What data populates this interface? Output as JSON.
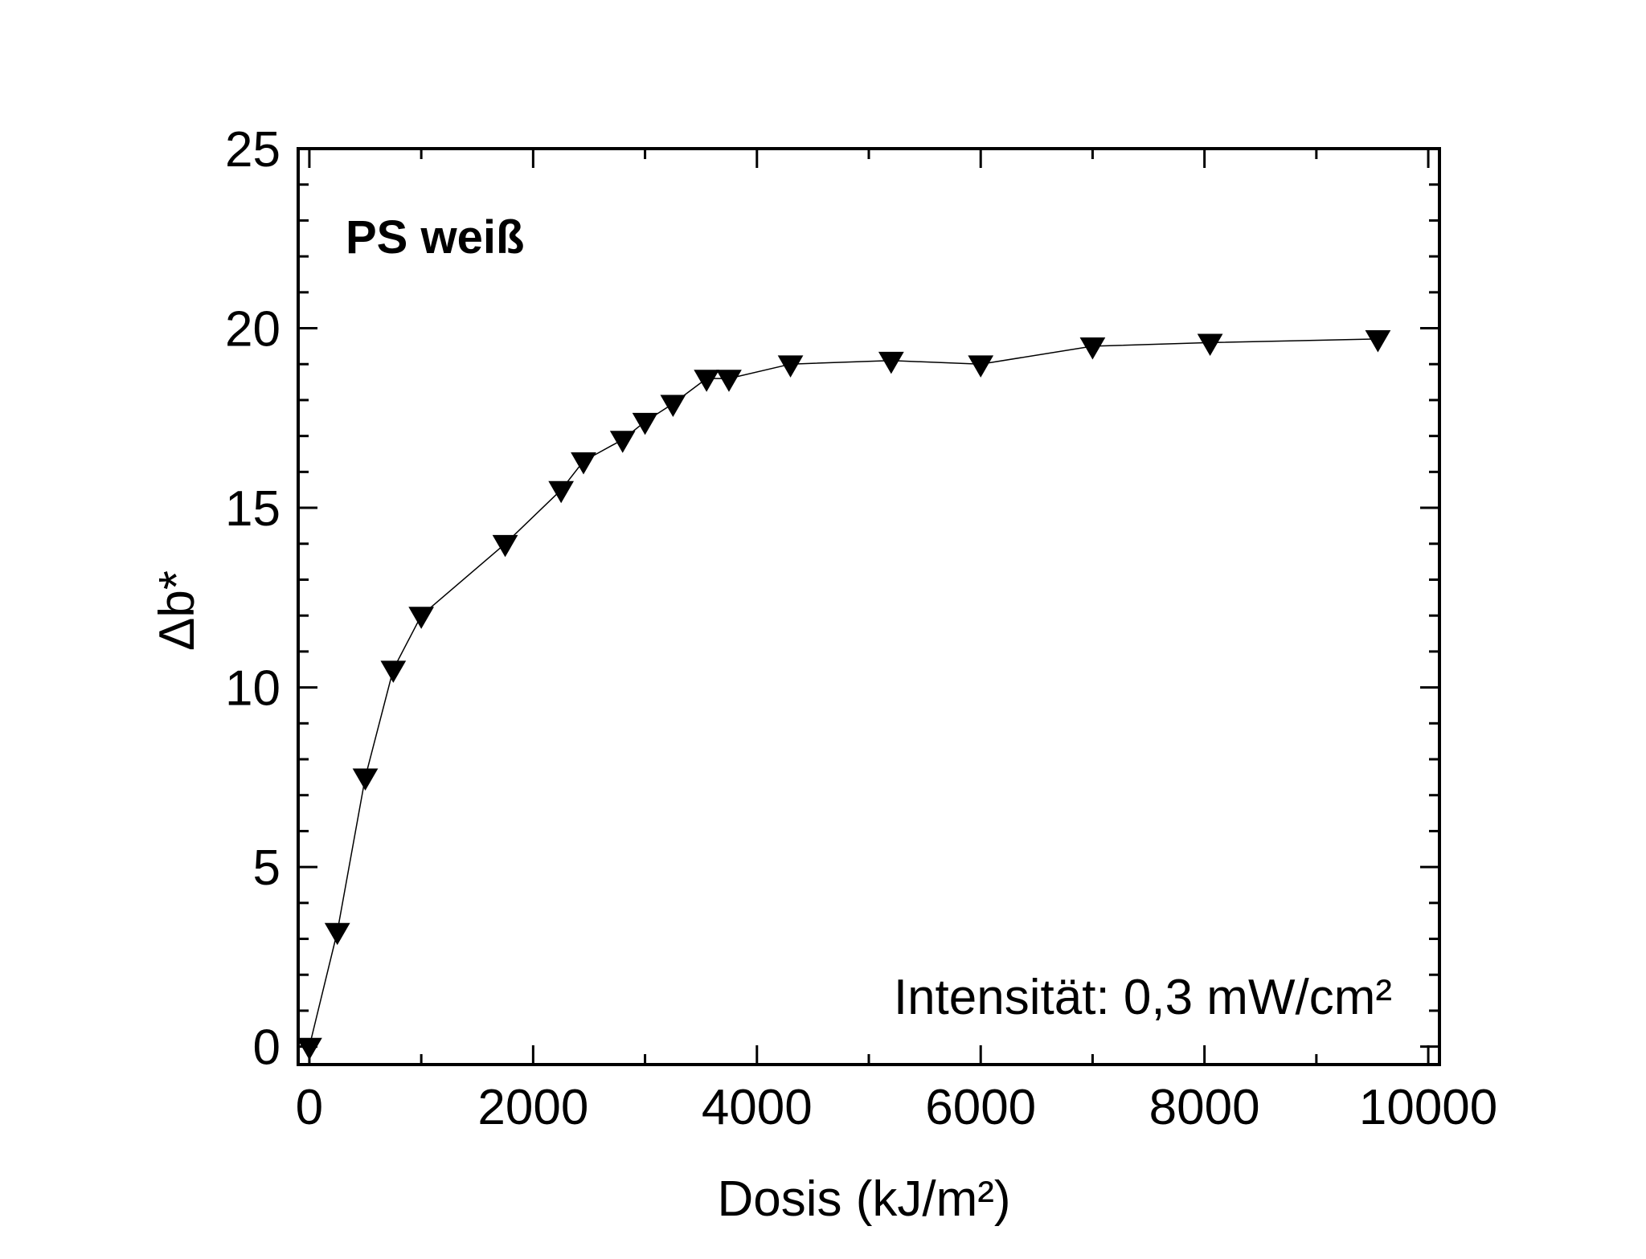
{
  "chart_data": {
    "type": "scatter",
    "title": "PS weiß",
    "annotation": "Intensität: 0,3 mW/cm²",
    "xlabel": "Dosis (kJ/m²)",
    "ylabel": "Δb*",
    "xlim": [
      -100,
      10100
    ],
    "ylim": [
      -0.5,
      25
    ],
    "xticks": [
      0,
      2000,
      4000,
      6000,
      8000,
      10000
    ],
    "xtick_labels": [
      "0",
      "2000",
      "4000",
      "6000",
      "8000",
      "10000"
    ],
    "yticks": [
      0,
      5,
      10,
      15,
      20,
      25
    ],
    "ytick_labels": [
      "0",
      "5",
      "10",
      "15",
      "20",
      "25"
    ],
    "grid": false,
    "marker": "triangle-down",
    "line": true,
    "color": "#000000",
    "series": [
      {
        "x": [
          0,
          250,
          500,
          750,
          1000,
          1750,
          2250,
          2450,
          2800,
          3000,
          3250,
          3550,
          3750,
          4300,
          5200,
          6000,
          7000,
          8050,
          9550
        ],
        "y": [
          0.0,
          3.2,
          7.5,
          10.5,
          12.0,
          14.0,
          15.5,
          16.3,
          16.9,
          17.4,
          17.9,
          18.6,
          18.6,
          19.0,
          19.1,
          19.0,
          19.5,
          19.6,
          19.7
        ]
      }
    ]
  }
}
